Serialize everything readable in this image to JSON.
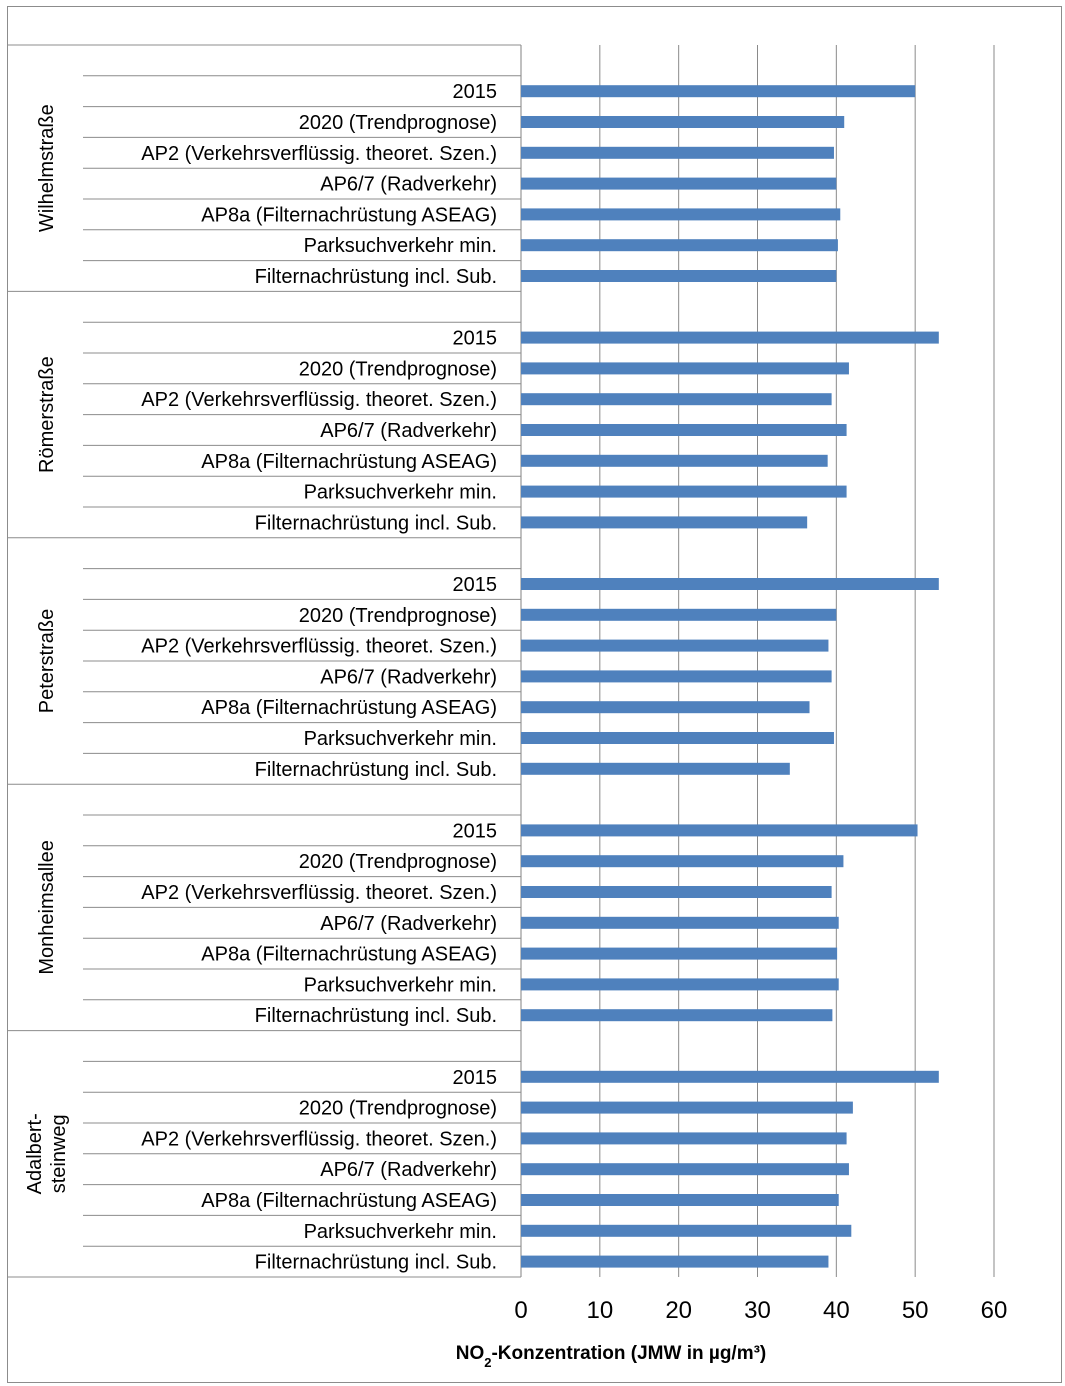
{
  "chart_data": {
    "type": "bar",
    "orientation": "horizontal",
    "xlabel": {
      "prefix": "NO",
      "subscript": "2",
      "suffix": "-Konzentration  (JMW in µg/m³)"
    },
    "xlim": [
      0,
      60
    ],
    "xticks": [
      "0",
      "10",
      "20",
      "30",
      "40",
      "50",
      "60"
    ],
    "grid": true,
    "bar_color": "#4F81BD",
    "groups": [
      {
        "name": [
          "Wilhelmstraße"
        ],
        "categories": [
          "2015",
          "2020 (Trendprognose)",
          "AP2 (Verkehrsverflüssig. theoret. Szen.)",
          "AP6/7 (Radverkehr)",
          "AP8a (Filternachrüstung  ASEAG)",
          "Parksuchverkehr min.",
          "Filternachrüstung incl. Sub."
        ],
        "values": [
          50.0,
          41.0,
          39.7,
          40.0,
          40.5,
          40.2,
          40.0
        ]
      },
      {
        "name": [
          "Römerstraße"
        ],
        "categories": [
          "2015",
          "2020 (Trendprognose)",
          "AP2 (Verkehrsverflüssig. theoret. Szen.)",
          "AP6/7 (Radverkehr)",
          "AP8a (Filternachrüstung  ASEAG)",
          "Parksuchverkehr min.",
          "Filternachrüstung incl. Sub."
        ],
        "values": [
          53.0,
          41.6,
          39.4,
          41.3,
          38.9,
          41.3,
          36.3
        ]
      },
      {
        "name": [
          "Peterstraße"
        ],
        "categories": [
          "2015",
          "2020 (Trendprognose)",
          "AP2 (Verkehrsverflüssig. theoret. Szen.)",
          "AP6/7 (Radverkehr)",
          "AP8a (Filternachrüstung  ASEAG)",
          "Parksuchverkehr min.",
          "Filternachrüstung incl. Sub."
        ],
        "values": [
          53.0,
          40.0,
          39.0,
          39.4,
          36.6,
          39.7,
          34.1
        ]
      },
      {
        "name": [
          "Monheimsallee"
        ],
        "categories": [
          "2015",
          "2020 (Trendprognose)",
          "AP2 (Verkehrsverflüssig. theoret. Szen.)",
          "AP6/7 (Radverkehr)",
          "AP8a (Filternachrüstung  ASEAG)",
          "Parksuchverkehr min.",
          "Filternachrüstung incl. Sub."
        ],
        "values": [
          50.3,
          40.9,
          39.4,
          40.3,
          40.1,
          40.3,
          39.5
        ]
      },
      {
        "name": [
          "Adalbert-",
          "steinweg"
        ],
        "categories": [
          "2015",
          "2020 (Trendprognose)",
          "AP2 (Verkehrsverflüssig. theoret. Szen.)",
          "AP6/7 (Radverkehr)",
          "AP8a (Filternachrüstung  ASEAG)",
          "Parksuchverkehr min.",
          "Filternachrüstung incl. Sub."
        ],
        "values": [
          53.0,
          42.1,
          41.3,
          41.6,
          40.3,
          41.9,
          39.0
        ]
      }
    ]
  }
}
